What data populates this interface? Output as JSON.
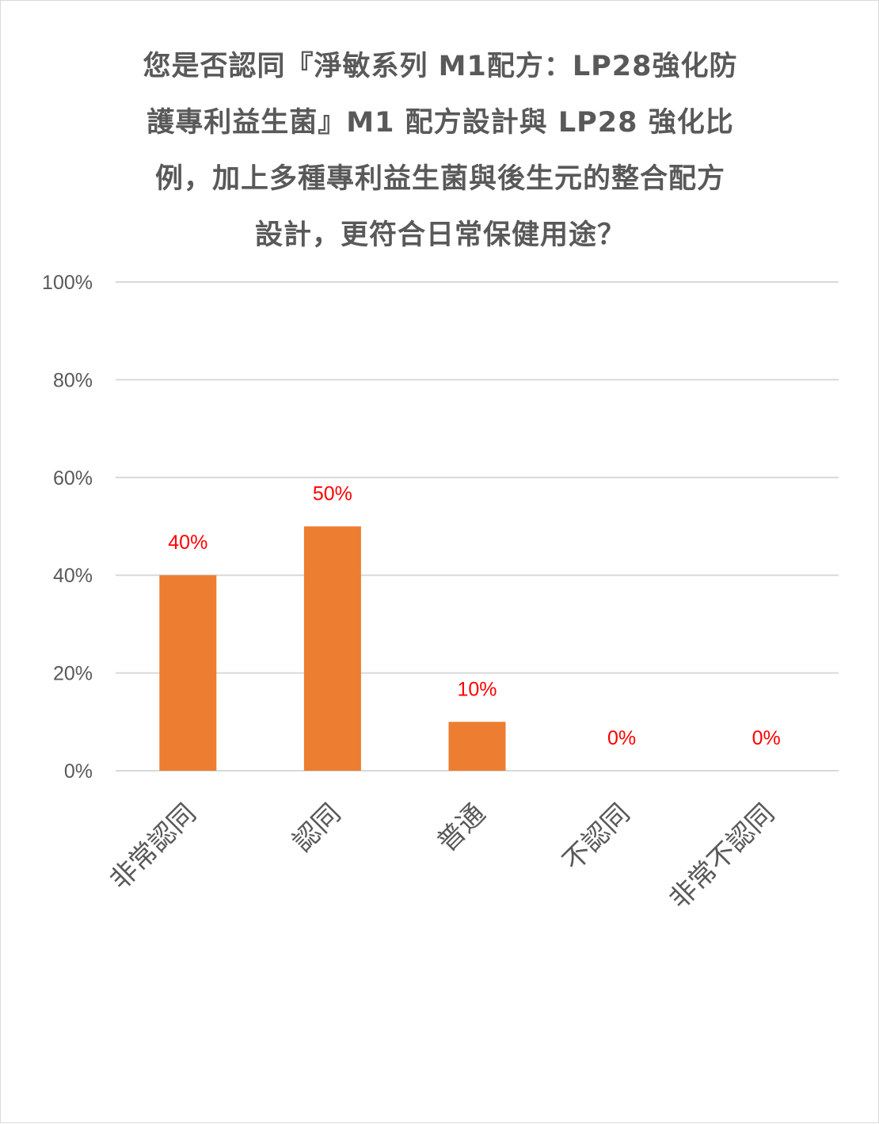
{
  "chart_data": {
    "type": "bar",
    "title": "您是否認同『淨敏系列 M1配方：LP28強化防護專利益生菌』M1 配方設計與 LP28 強化比例，加上多種專利益生菌與後生元的整合配方設計，更符合日常保健用途？",
    "title_lines": [
      "您是否認同『淨敏系列 M1配方：LP28強化防",
      "護專利益生菌』M1 配方設計與 LP28 強化比",
      "例，加上多種專利益生菌與後生元的整合配方",
      "設計，更符合日常保健用途？"
    ],
    "categories": [
      "非常認同",
      "認同",
      "普通",
      "不認同",
      "非常不認同"
    ],
    "values": [
      40,
      50,
      10,
      0,
      0
    ],
    "data_labels": [
      "40%",
      "50%",
      "10%",
      "0%",
      "0%"
    ],
    "y_ticks": [
      0,
      20,
      40,
      60,
      80,
      100
    ],
    "y_tick_labels": [
      "0%",
      "20%",
      "40%",
      "60%",
      "80%",
      "100%"
    ],
    "ylim": [
      0,
      100
    ],
    "xlabel": "",
    "ylabel": "",
    "grid": true,
    "legend": "none",
    "colors": {
      "bar": "#ed7d31",
      "data_label": "#ff0000",
      "gridline": "#d9d9d9",
      "text": "#595959"
    }
  }
}
